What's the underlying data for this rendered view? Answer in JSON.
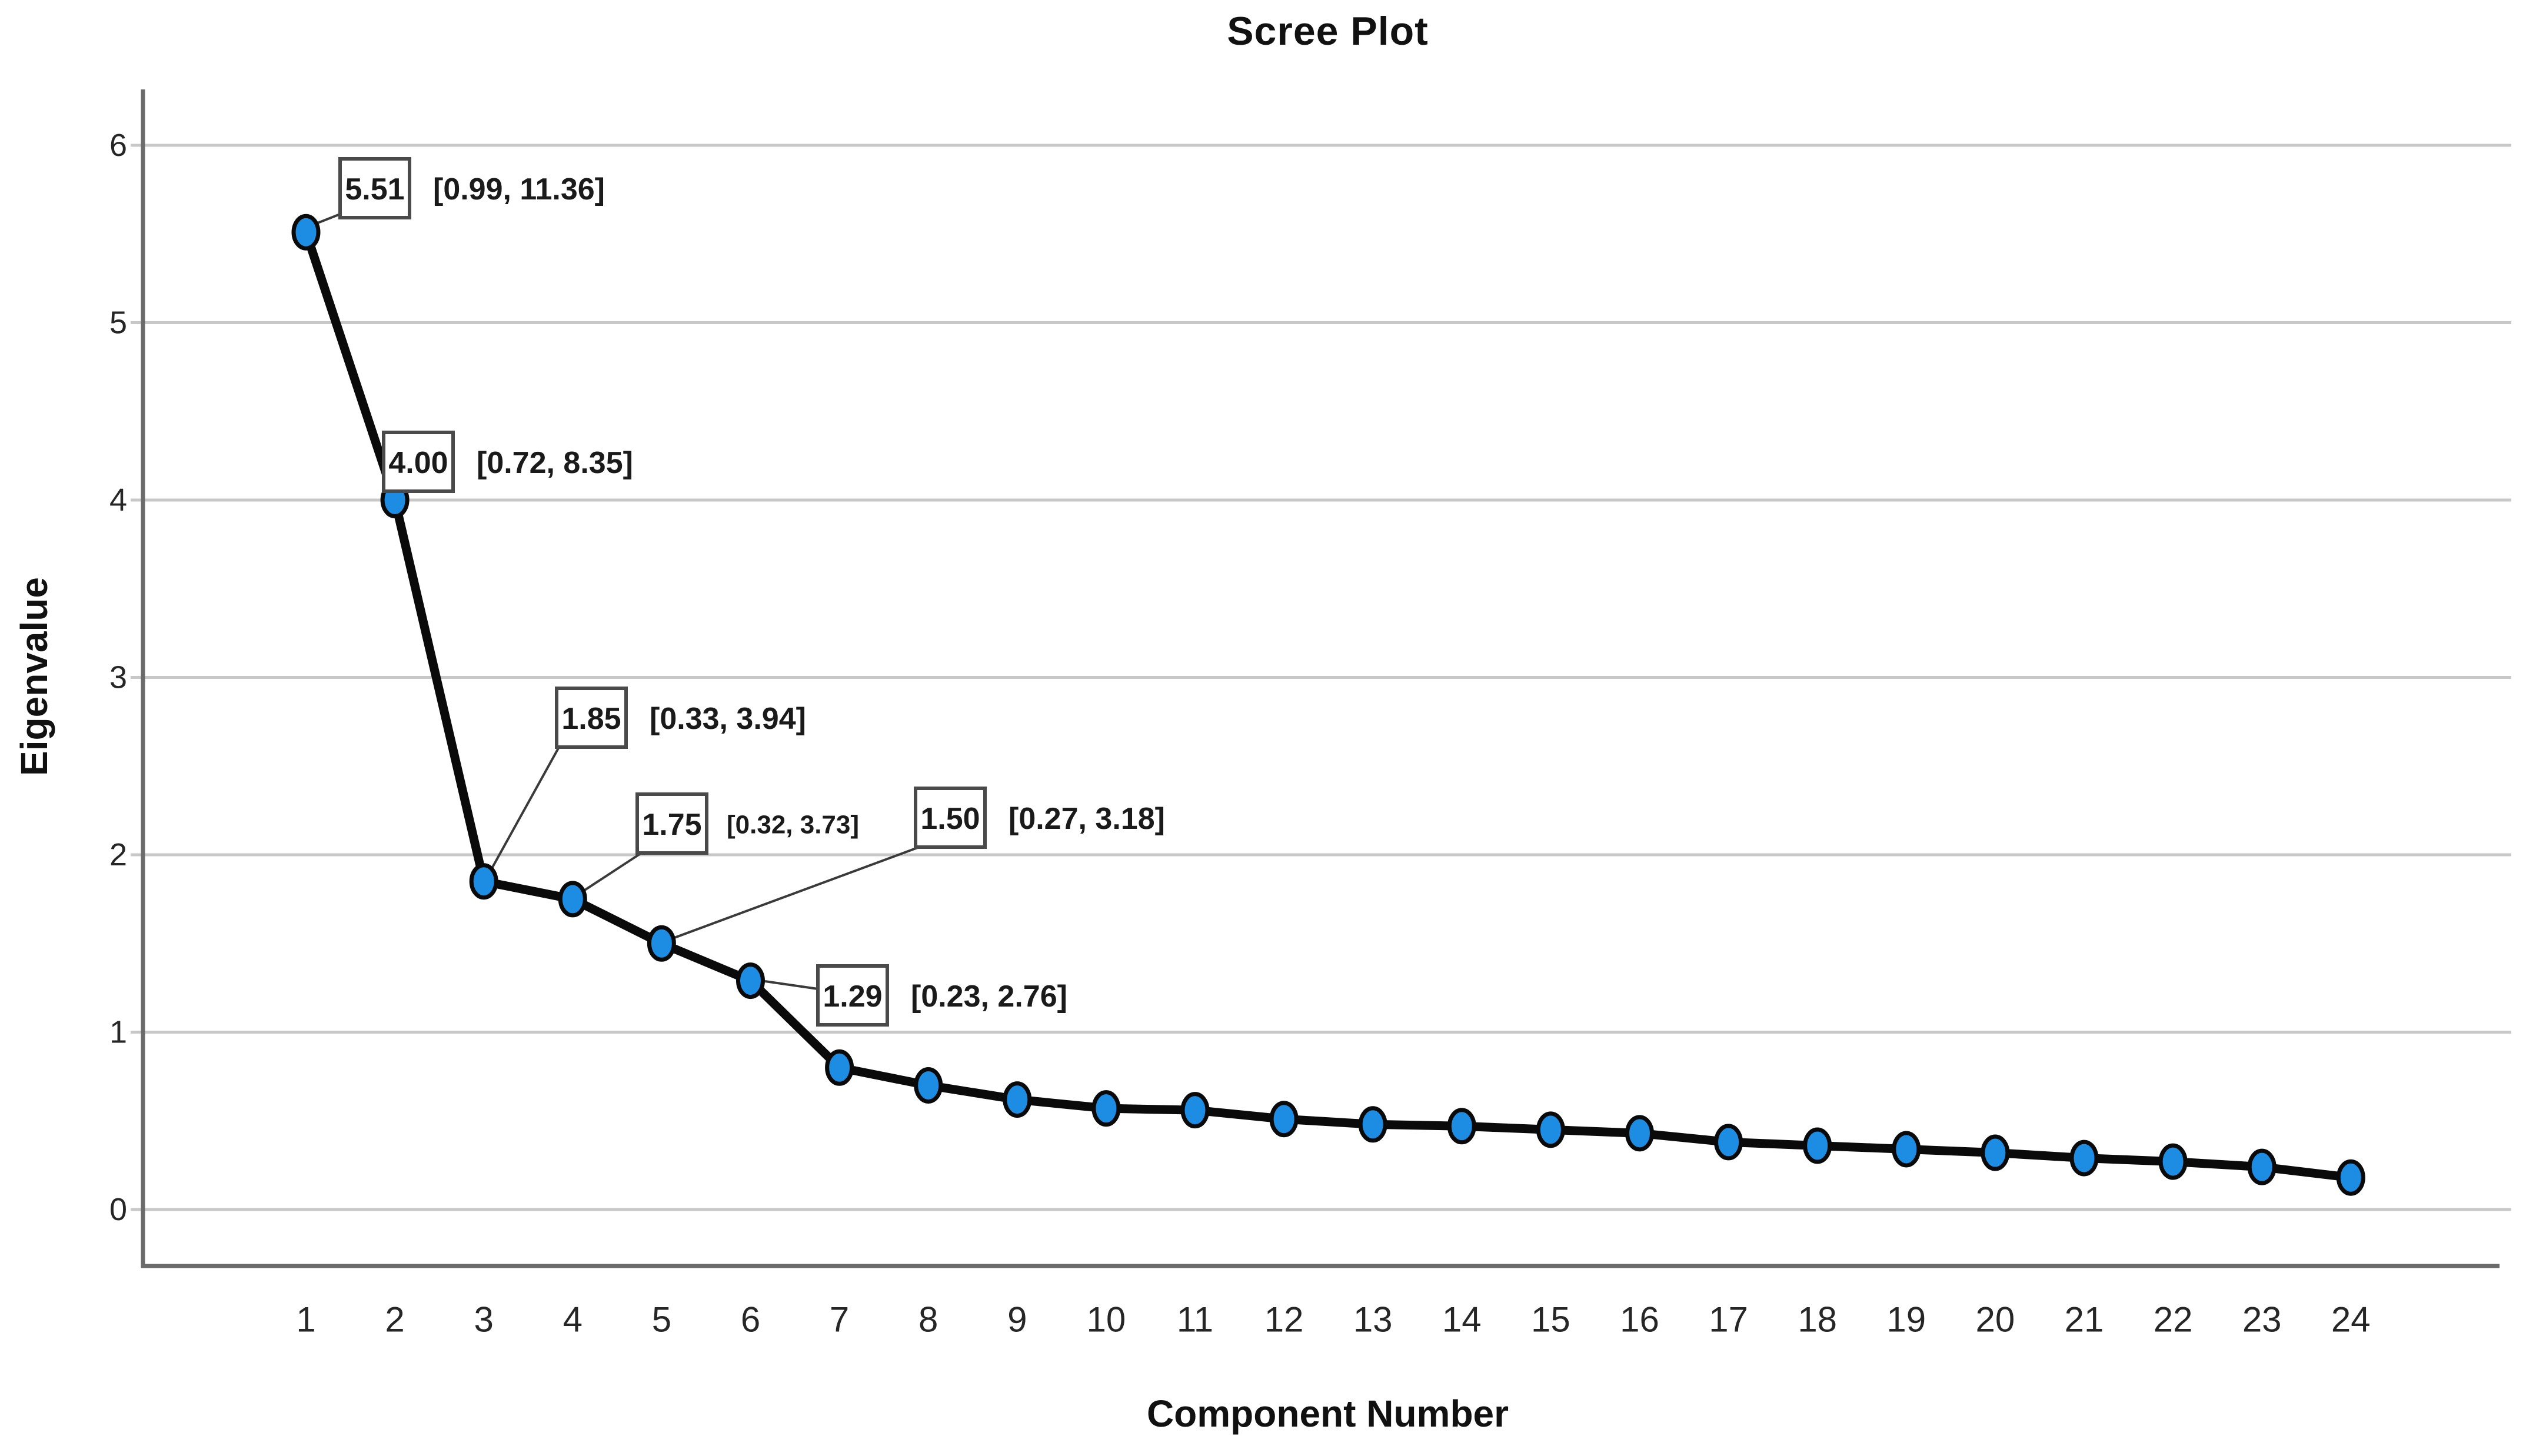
{
  "chart_data": {
    "type": "line",
    "title": "Scree Plot",
    "xlabel": "Component Number",
    "ylabel": "Eigenvalue",
    "x": [
      1,
      2,
      3,
      4,
      5,
      6,
      7,
      8,
      9,
      10,
      11,
      12,
      13,
      14,
      15,
      16,
      17,
      18,
      19,
      20,
      21,
      22,
      23,
      24
    ],
    "values": [
      5.51,
      4.0,
      1.85,
      1.75,
      1.5,
      1.29,
      0.8,
      0.7,
      0.62,
      0.57,
      0.56,
      0.51,
      0.48,
      0.47,
      0.45,
      0.43,
      0.38,
      0.36,
      0.34,
      0.32,
      0.29,
      0.27,
      0.24,
      0.18
    ],
    "yticks": [
      0,
      1,
      2,
      3,
      4,
      5,
      6
    ],
    "xticks": [
      1,
      2,
      3,
      4,
      5,
      6,
      7,
      8,
      9,
      10,
      11,
      12,
      13,
      14,
      15,
      16,
      17,
      18,
      19,
      20,
      21,
      22,
      23,
      24
    ],
    "ylim": [
      0,
      6.3
    ],
    "grid": "horizontal",
    "legend": "none",
    "annotations": [
      {
        "component": 1,
        "label": "5.51",
        "ci": "[0.99, 11.36]"
      },
      {
        "component": 2,
        "label": "4.00",
        "ci": "[0.72, 8.35]"
      },
      {
        "component": 3,
        "label": "1.85",
        "ci": "[0.33, 3.94]"
      },
      {
        "component": 4,
        "label": "1.75",
        "ci": "[0.32, 3.73]"
      },
      {
        "component": 5,
        "label": "1.50",
        "ci": "[0.27, 3.18]"
      },
      {
        "component": 6,
        "label": "1.29",
        "ci": "[0.23, 2.76]"
      }
    ],
    "colors": {
      "marker_fill": "#1d8ce3",
      "marker_edge": "#0a0a0a",
      "line": "#0a0a0a",
      "gridline": "#c8c8c8",
      "axis": "#6b6b6b",
      "text": "#1a1a1a",
      "annotation_box_border": "#4a4a4a",
      "annotation_box_fill": "#ffffff"
    }
  }
}
